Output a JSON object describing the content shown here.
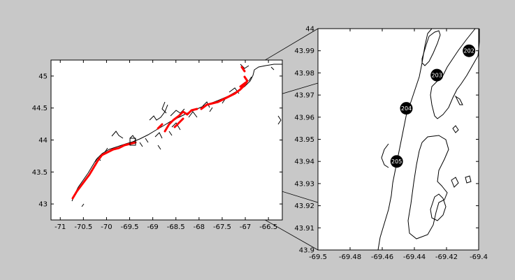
{
  "figure": {
    "background_color": "#c8c8c8",
    "axes_color": "#ffffff",
    "coast_color": "#000000",
    "sample_color": "#ff0000",
    "marker_color": "#000000",
    "marker_text_color": "#ffffff"
  },
  "overview_map": {
    "xlim": [
      -71.2,
      -66.2
    ],
    "ylim": [
      42.75,
      45.25
    ],
    "x_ticks": [
      "-71",
      "-70.5",
      "-70",
      "-69.5",
      "-69",
      "-68.5",
      "-68",
      "-67.5",
      "-67",
      "-66.5"
    ],
    "x_tick_values": [
      -71,
      -70.5,
      -70,
      -69.5,
      -69,
      -68.5,
      -68,
      -67.5,
      -67,
      -66.5
    ],
    "y_ticks": [
      "43",
      "43.5",
      "44",
      "44.5",
      "45"
    ],
    "y_tick_values": [
      43,
      43.5,
      44,
      44.5,
      45
    ],
    "zoom_box": {
      "lon_min": -69.5,
      "lon_max": -69.4,
      "lat_min": 43.9,
      "lat_max": 44.0
    }
  },
  "inset_map": {
    "xlim": [
      -69.5,
      -69.4
    ],
    "ylim": [
      43.9,
      44.0
    ],
    "x_ticks": [
      "-69.5",
      "-69.48",
      "-69.46",
      "-69.44",
      "-69.42",
      "-69.4"
    ],
    "x_tick_values": [
      -69.5,
      -69.48,
      -69.46,
      -69.44,
      -69.42,
      -69.4
    ],
    "y_ticks": [
      "43.9",
      "43.91",
      "43.92",
      "43.93",
      "43.94",
      "43.95",
      "43.96",
      "43.97",
      "43.98",
      "43.99",
      "44"
    ],
    "y_tick_values": [
      43.9,
      43.91,
      43.92,
      43.93,
      43.94,
      43.95,
      43.96,
      43.97,
      43.98,
      43.99,
      44.0
    ],
    "stations": [
      {
        "label": "202",
        "lon": -69.406,
        "lat": 43.99
      },
      {
        "label": "203",
        "lon": -69.426,
        "lat": 43.979
      },
      {
        "label": "204",
        "lon": -69.445,
        "lat": 43.964
      },
      {
        "label": "205",
        "lon": -69.451,
        "lat": 43.94
      }
    ]
  }
}
